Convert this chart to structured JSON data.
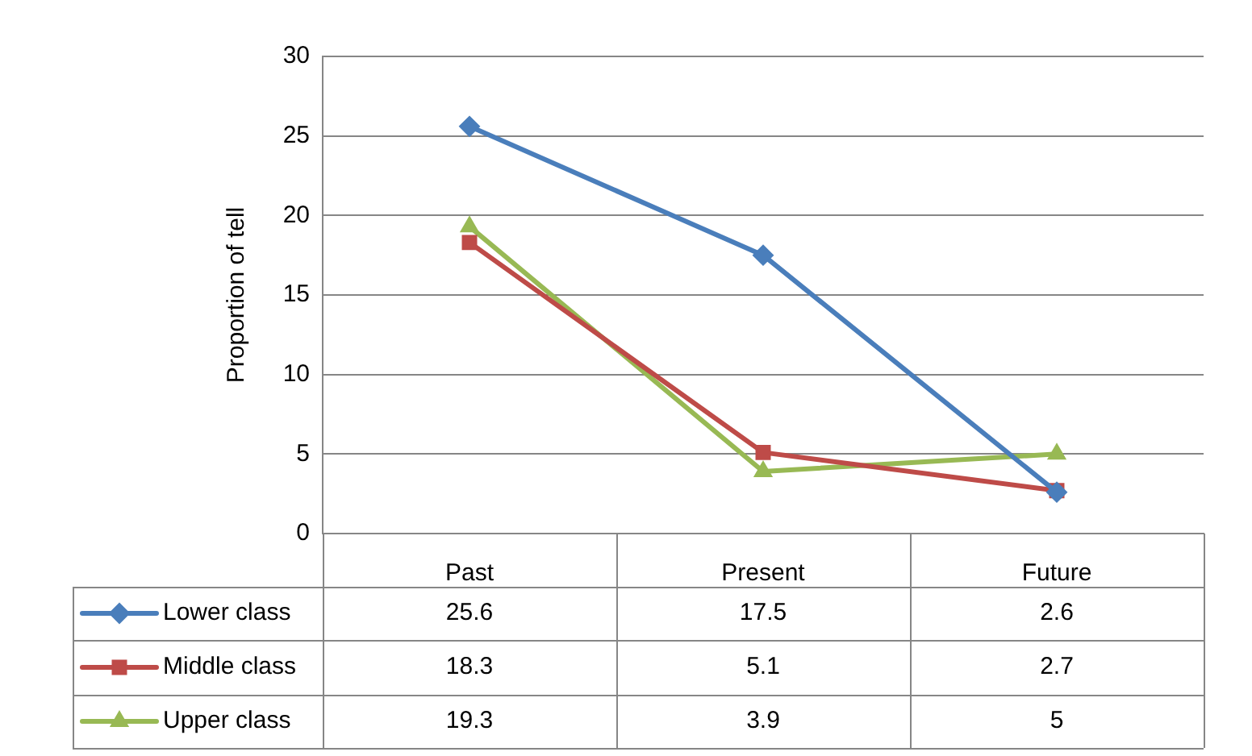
{
  "chart_data": {
    "type": "line",
    "ylabel": "Proportion of tell",
    "categories": [
      "Past",
      "Present",
      "Future"
    ],
    "series": [
      {
        "name": "Lower class",
        "color": "#4a7ebb",
        "marker": "diamond",
        "values": [
          25.6,
          17.5,
          2.6
        ]
      },
      {
        "name": "Middle class",
        "color": "#be4b48",
        "marker": "square",
        "values": [
          18.3,
          5.1,
          2.7
        ]
      },
      {
        "name": "Upper class",
        "color": "#98b954",
        "marker": "triangle",
        "values": [
          19.3,
          3.9,
          5
        ]
      }
    ],
    "ylim": [
      0,
      30
    ],
    "yticks": [
      0,
      5,
      10,
      15,
      20,
      25,
      30
    ],
    "grid": "y",
    "legend": "bottom",
    "data_labels": true
  }
}
